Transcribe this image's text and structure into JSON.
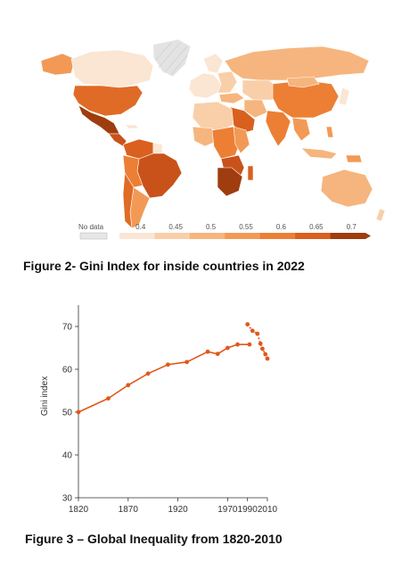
{
  "map_figure": {
    "legend": {
      "no_data_label": "No data",
      "ticks": [
        "0.4",
        "0.45",
        "0.5",
        "0.55",
        "0.6",
        "0.65",
        "0.7"
      ],
      "colors": [
        "#fbe5d3",
        "#f9cfa9",
        "#f6b57e",
        "#f29a55",
        "#ec7f34",
        "#d9601e",
        "#9f3d0e"
      ]
    },
    "colors": {
      "ocean": "#ffffff",
      "no_data": "#d9d9d9",
      "border": "#ffffff"
    }
  },
  "captions": {
    "figure2": "Figure 2- Gini Index for inside countries in 2022",
    "figure3": "Figure 3 – Global Inequality from 1820-2010"
  },
  "chart_data": {
    "type": "line",
    "title": "",
    "xlabel": "",
    "ylabel": "Gini index",
    "xlim": [
      1820,
      2010
    ],
    "ylim": [
      30,
      75
    ],
    "x_ticks": [
      1820,
      1870,
      1920,
      1970,
      1990,
      2010
    ],
    "x_tick_labels": [
      "1820",
      "1870",
      "1920",
      "1970",
      "1990",
      "2010"
    ],
    "y_ticks": [
      30,
      40,
      50,
      60,
      70
    ],
    "y_tick_labels": [
      "30",
      "40",
      "50",
      "60",
      "70"
    ],
    "grid": false,
    "color": "#e0581a",
    "series": [
      {
        "style": "solid",
        "x": [
          1820,
          1850,
          1870,
          1890,
          1910,
          1929,
          1950,
          1960,
          1970,
          1980,
          1992
        ],
        "values": [
          50,
          53.2,
          56.3,
          59,
          61.1,
          61.7,
          64.1,
          63.6,
          65,
          65.8,
          65.8
        ]
      },
      {
        "style": "dashed",
        "x": [
          1990,
          1995,
          2000,
          2003,
          2005,
          2008,
          2010
        ],
        "values": [
          70.5,
          69,
          68.3,
          66,
          64.8,
          63.5,
          62.5
        ]
      }
    ]
  }
}
